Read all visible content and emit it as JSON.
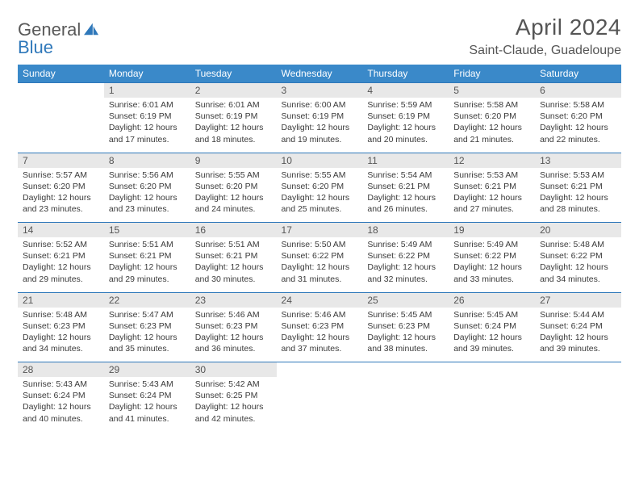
{
  "brand": {
    "word1": "General",
    "word2": "Blue"
  },
  "title": "April 2024",
  "location": "Saint-Claude, Guadeloupe",
  "colors": {
    "header_bg": "#3a89c9",
    "header_text": "#ffffff",
    "daynum_bg": "#e8e8e8",
    "rule": "#2f78ba",
    "body_text": "#3a3a3a",
    "title_text": "#555555",
    "brand_gray": "#595959",
    "brand_blue": "#2f78ba"
  },
  "fonts": {
    "body_pt": 10.5,
    "header_pt": 12,
    "title_pt": 28,
    "subtitle_pt": 16
  },
  "weekdays": [
    "Sunday",
    "Monday",
    "Tuesday",
    "Wednesday",
    "Thursday",
    "Friday",
    "Saturday"
  ],
  "weeks": [
    {
      "days": [
        {
          "num": "",
          "sunrise": "",
          "sunset": "",
          "daylight1": "",
          "daylight2": ""
        },
        {
          "num": "1",
          "sunrise": "Sunrise: 6:01 AM",
          "sunset": "Sunset: 6:19 PM",
          "daylight1": "Daylight: 12 hours",
          "daylight2": "and 17 minutes."
        },
        {
          "num": "2",
          "sunrise": "Sunrise: 6:01 AM",
          "sunset": "Sunset: 6:19 PM",
          "daylight1": "Daylight: 12 hours",
          "daylight2": "and 18 minutes."
        },
        {
          "num": "3",
          "sunrise": "Sunrise: 6:00 AM",
          "sunset": "Sunset: 6:19 PM",
          "daylight1": "Daylight: 12 hours",
          "daylight2": "and 19 minutes."
        },
        {
          "num": "4",
          "sunrise": "Sunrise: 5:59 AM",
          "sunset": "Sunset: 6:19 PM",
          "daylight1": "Daylight: 12 hours",
          "daylight2": "and 20 minutes."
        },
        {
          "num": "5",
          "sunrise": "Sunrise: 5:58 AM",
          "sunset": "Sunset: 6:20 PM",
          "daylight1": "Daylight: 12 hours",
          "daylight2": "and 21 minutes."
        },
        {
          "num": "6",
          "sunrise": "Sunrise: 5:58 AM",
          "sunset": "Sunset: 6:20 PM",
          "daylight1": "Daylight: 12 hours",
          "daylight2": "and 22 minutes."
        }
      ]
    },
    {
      "days": [
        {
          "num": "7",
          "sunrise": "Sunrise: 5:57 AM",
          "sunset": "Sunset: 6:20 PM",
          "daylight1": "Daylight: 12 hours",
          "daylight2": "and 23 minutes."
        },
        {
          "num": "8",
          "sunrise": "Sunrise: 5:56 AM",
          "sunset": "Sunset: 6:20 PM",
          "daylight1": "Daylight: 12 hours",
          "daylight2": "and 23 minutes."
        },
        {
          "num": "9",
          "sunrise": "Sunrise: 5:55 AM",
          "sunset": "Sunset: 6:20 PM",
          "daylight1": "Daylight: 12 hours",
          "daylight2": "and 24 minutes."
        },
        {
          "num": "10",
          "sunrise": "Sunrise: 5:55 AM",
          "sunset": "Sunset: 6:20 PM",
          "daylight1": "Daylight: 12 hours",
          "daylight2": "and 25 minutes."
        },
        {
          "num": "11",
          "sunrise": "Sunrise: 5:54 AM",
          "sunset": "Sunset: 6:21 PM",
          "daylight1": "Daylight: 12 hours",
          "daylight2": "and 26 minutes."
        },
        {
          "num": "12",
          "sunrise": "Sunrise: 5:53 AM",
          "sunset": "Sunset: 6:21 PM",
          "daylight1": "Daylight: 12 hours",
          "daylight2": "and 27 minutes."
        },
        {
          "num": "13",
          "sunrise": "Sunrise: 5:53 AM",
          "sunset": "Sunset: 6:21 PM",
          "daylight1": "Daylight: 12 hours",
          "daylight2": "and 28 minutes."
        }
      ]
    },
    {
      "days": [
        {
          "num": "14",
          "sunrise": "Sunrise: 5:52 AM",
          "sunset": "Sunset: 6:21 PM",
          "daylight1": "Daylight: 12 hours",
          "daylight2": "and 29 minutes."
        },
        {
          "num": "15",
          "sunrise": "Sunrise: 5:51 AM",
          "sunset": "Sunset: 6:21 PM",
          "daylight1": "Daylight: 12 hours",
          "daylight2": "and 29 minutes."
        },
        {
          "num": "16",
          "sunrise": "Sunrise: 5:51 AM",
          "sunset": "Sunset: 6:21 PM",
          "daylight1": "Daylight: 12 hours",
          "daylight2": "and 30 minutes."
        },
        {
          "num": "17",
          "sunrise": "Sunrise: 5:50 AM",
          "sunset": "Sunset: 6:22 PM",
          "daylight1": "Daylight: 12 hours",
          "daylight2": "and 31 minutes."
        },
        {
          "num": "18",
          "sunrise": "Sunrise: 5:49 AM",
          "sunset": "Sunset: 6:22 PM",
          "daylight1": "Daylight: 12 hours",
          "daylight2": "and 32 minutes."
        },
        {
          "num": "19",
          "sunrise": "Sunrise: 5:49 AM",
          "sunset": "Sunset: 6:22 PM",
          "daylight1": "Daylight: 12 hours",
          "daylight2": "and 33 minutes."
        },
        {
          "num": "20",
          "sunrise": "Sunrise: 5:48 AM",
          "sunset": "Sunset: 6:22 PM",
          "daylight1": "Daylight: 12 hours",
          "daylight2": "and 34 minutes."
        }
      ]
    },
    {
      "days": [
        {
          "num": "21",
          "sunrise": "Sunrise: 5:48 AM",
          "sunset": "Sunset: 6:23 PM",
          "daylight1": "Daylight: 12 hours",
          "daylight2": "and 34 minutes."
        },
        {
          "num": "22",
          "sunrise": "Sunrise: 5:47 AM",
          "sunset": "Sunset: 6:23 PM",
          "daylight1": "Daylight: 12 hours",
          "daylight2": "and 35 minutes."
        },
        {
          "num": "23",
          "sunrise": "Sunrise: 5:46 AM",
          "sunset": "Sunset: 6:23 PM",
          "daylight1": "Daylight: 12 hours",
          "daylight2": "and 36 minutes."
        },
        {
          "num": "24",
          "sunrise": "Sunrise: 5:46 AM",
          "sunset": "Sunset: 6:23 PM",
          "daylight1": "Daylight: 12 hours",
          "daylight2": "and 37 minutes."
        },
        {
          "num": "25",
          "sunrise": "Sunrise: 5:45 AM",
          "sunset": "Sunset: 6:23 PM",
          "daylight1": "Daylight: 12 hours",
          "daylight2": "and 38 minutes."
        },
        {
          "num": "26",
          "sunrise": "Sunrise: 5:45 AM",
          "sunset": "Sunset: 6:24 PM",
          "daylight1": "Daylight: 12 hours",
          "daylight2": "and 39 minutes."
        },
        {
          "num": "27",
          "sunrise": "Sunrise: 5:44 AM",
          "sunset": "Sunset: 6:24 PM",
          "daylight1": "Daylight: 12 hours",
          "daylight2": "and 39 minutes."
        }
      ]
    },
    {
      "days": [
        {
          "num": "28",
          "sunrise": "Sunrise: 5:43 AM",
          "sunset": "Sunset: 6:24 PM",
          "daylight1": "Daylight: 12 hours",
          "daylight2": "and 40 minutes."
        },
        {
          "num": "29",
          "sunrise": "Sunrise: 5:43 AM",
          "sunset": "Sunset: 6:24 PM",
          "daylight1": "Daylight: 12 hours",
          "daylight2": "and 41 minutes."
        },
        {
          "num": "30",
          "sunrise": "Sunrise: 5:42 AM",
          "sunset": "Sunset: 6:25 PM",
          "daylight1": "Daylight: 12 hours",
          "daylight2": "and 42 minutes."
        },
        {
          "num": "",
          "sunrise": "",
          "sunset": "",
          "daylight1": "",
          "daylight2": ""
        },
        {
          "num": "",
          "sunrise": "",
          "sunset": "",
          "daylight1": "",
          "daylight2": ""
        },
        {
          "num": "",
          "sunrise": "",
          "sunset": "",
          "daylight1": "",
          "daylight2": ""
        },
        {
          "num": "",
          "sunrise": "",
          "sunset": "",
          "daylight1": "",
          "daylight2": ""
        }
      ]
    }
  ]
}
